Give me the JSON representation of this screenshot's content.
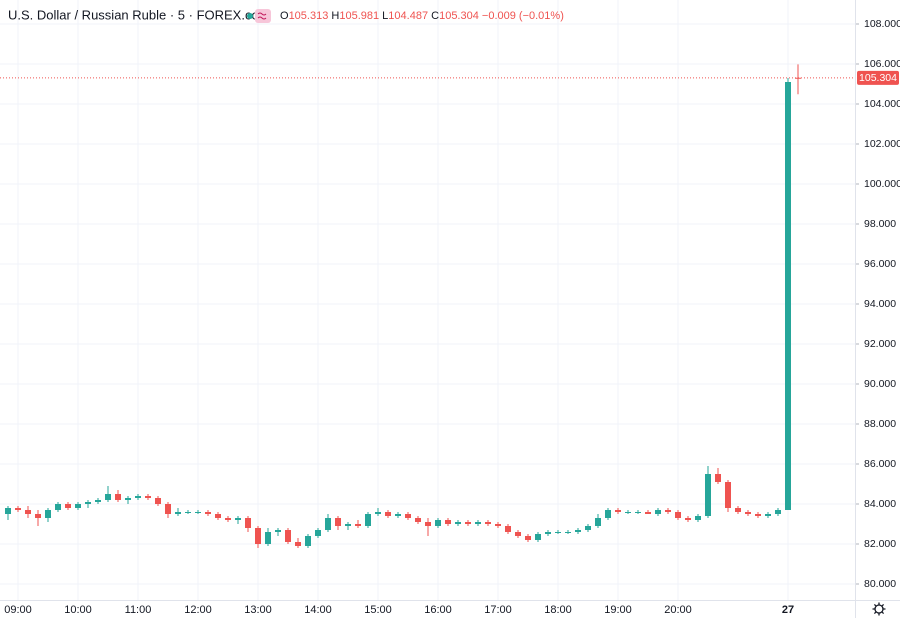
{
  "header": {
    "symbol": "U.S. Dollar / Russian Ruble · 5 · FOREX.com",
    "ohlc_labels": [
      "O",
      "H",
      "L",
      "C"
    ],
    "change": "−0.009 (−0.01%)"
  },
  "chart_data": {
    "type": "candlestick",
    "categories": [
      null,
      "09:00",
      null,
      null,
      null,
      null,
      null,
      "10:00",
      null,
      null,
      null,
      null,
      null,
      "11:00",
      null,
      null,
      null,
      null,
      null,
      "12:00",
      null,
      null,
      null,
      null,
      null,
      "13:00",
      null,
      null,
      null,
      null,
      null,
      "14:00",
      null,
      null,
      null,
      null,
      null,
      "15:00",
      null,
      null,
      null,
      null,
      null,
      "16:00",
      null,
      null,
      null,
      null,
      null,
      "17:00",
      null,
      null,
      null,
      null,
      null,
      "18:00",
      null,
      null,
      null,
      null,
      null,
      "19:00",
      null,
      null,
      null,
      null,
      null,
      "20:00",
      null,
      null,
      null,
      null,
      null,
      null,
      null,
      null,
      null,
      null,
      "27",
      null
    ],
    "open": [
      83.5,
      83.8,
      83.7,
      83.5,
      83.3,
      83.7,
      84.0,
      83.8,
      84.0,
      84.1,
      84.2,
      84.5,
      84.2,
      84.3,
      84.4,
      84.3,
      84.0,
      83.5,
      83.6,
      83.6,
      83.6,
      83.5,
      83.3,
      83.2,
      83.3,
      82.8,
      82.0,
      82.6,
      82.7,
      82.1,
      81.9,
      82.4,
      82.7,
      83.3,
      82.9,
      83.0,
      82.9,
      83.5,
      83.6,
      83.4,
      83.5,
      83.3,
      83.1,
      82.9,
      83.2,
      83.0,
      83.1,
      83.0,
      83.1,
      83.0,
      82.9,
      82.6,
      82.4,
      82.2,
      82.5,
      82.6,
      82.6,
      82.6,
      82.7,
      82.9,
      83.3,
      83.7,
      83.6,
      83.6,
      83.6,
      83.5,
      83.7,
      83.6,
      83.3,
      83.2,
      83.4,
      85.5,
      85.1,
      83.8,
      83.6,
      83.5,
      83.4,
      83.5,
      83.7,
      105.313
    ],
    "high": [
      83.9,
      83.9,
      83.9,
      83.7,
      83.8,
      84.1,
      84.1,
      84.1,
      84.2,
      84.3,
      84.9,
      84.7,
      84.4,
      84.5,
      84.5,
      84.4,
      84.1,
      83.8,
      83.7,
      83.7,
      83.7,
      83.6,
      83.4,
      83.4,
      83.4,
      82.9,
      82.8,
      82.8,
      82.8,
      82.3,
      82.5,
      82.8,
      83.5,
      83.4,
      83.1,
      83.2,
      83.6,
      83.8,
      83.7,
      83.6,
      83.6,
      83.4,
      83.3,
      83.3,
      83.3,
      83.2,
      83.2,
      83.2,
      83.2,
      83.1,
      83.0,
      82.7,
      82.5,
      82.6,
      82.7,
      82.7,
      82.7,
      82.8,
      83.0,
      83.5,
      83.8,
      83.8,
      83.7,
      83.7,
      83.7,
      83.8,
      83.8,
      83.7,
      83.4,
      83.5,
      85.9,
      85.8,
      85.2,
      83.9,
      83.7,
      83.6,
      83.6,
      83.8,
      105.3,
      105.981
    ],
    "low": [
      83.2,
      83.6,
      83.3,
      82.9,
      83.1,
      83.6,
      83.7,
      83.7,
      83.8,
      84.0,
      84.1,
      84.1,
      84.0,
      84.2,
      84.2,
      83.9,
      83.3,
      83.4,
      83.5,
      83.5,
      83.4,
      83.2,
      83.1,
      83.0,
      82.6,
      81.8,
      81.9,
      82.4,
      82.0,
      81.8,
      81.8,
      82.3,
      82.6,
      82.7,
      82.7,
      82.8,
      82.8,
      83.4,
      83.3,
      83.3,
      83.2,
      83.0,
      82.4,
      82.8,
      82.9,
      82.9,
      82.9,
      82.9,
      82.9,
      82.8,
      82.5,
      82.3,
      82.1,
      82.1,
      82.4,
      82.5,
      82.5,
      82.5,
      82.6,
      82.8,
      83.2,
      83.5,
      83.5,
      83.5,
      83.5,
      83.4,
      83.5,
      83.2,
      83.1,
      83.1,
      83.3,
      85.0,
      83.6,
      83.5,
      83.4,
      83.3,
      83.3,
      83.4,
      83.7,
      104.487
    ],
    "close": [
      83.8,
      83.7,
      83.5,
      83.3,
      83.7,
      84.0,
      83.8,
      84.0,
      84.1,
      84.2,
      84.5,
      84.2,
      84.3,
      84.4,
      84.3,
      84.0,
      83.5,
      83.6,
      83.6,
      83.6,
      83.5,
      83.3,
      83.2,
      83.3,
      82.8,
      82.0,
      82.6,
      82.7,
      82.1,
      81.9,
      82.4,
      82.7,
      83.3,
      82.9,
      83.0,
      82.9,
      83.5,
      83.6,
      83.4,
      83.5,
      83.3,
      83.1,
      82.9,
      83.2,
      83.0,
      83.1,
      83.0,
      83.1,
      83.0,
      82.9,
      82.6,
      82.4,
      82.2,
      82.5,
      82.6,
      82.6,
      82.6,
      82.7,
      82.9,
      83.3,
      83.7,
      83.6,
      83.6,
      83.6,
      83.5,
      83.7,
      83.6,
      83.3,
      83.2,
      83.4,
      85.5,
      85.1,
      83.8,
      83.6,
      83.5,
      83.4,
      83.5,
      83.7,
      105.1,
      105.304
    ],
    "up_color": "#26a69a",
    "down_color": "#ef5350",
    "ylim": [
      79.2,
      109.2
    ],
    "yticks": [
      {
        "value": 80,
        "label": "80.000"
      },
      {
        "value": 82,
        "label": "82.000"
      },
      {
        "value": 84,
        "label": "84.000"
      },
      {
        "value": 86,
        "label": "86.000"
      },
      {
        "value": 88,
        "label": "88.000"
      },
      {
        "value": 90,
        "label": "90.000"
      },
      {
        "value": 92,
        "label": "92.000"
      },
      {
        "value": 94,
        "label": "94.000"
      },
      {
        "value": 96,
        "label": "96.000"
      },
      {
        "value": 98,
        "label": "98.000"
      },
      {
        "value": 100,
        "label": "100.000"
      },
      {
        "value": 102,
        "label": "102.000"
      },
      {
        "value": 104,
        "label": "104.000"
      },
      {
        "value": 106,
        "label": "106.000"
      },
      {
        "value": 108,
        "label": "108.000"
      }
    ],
    "grid": true
  }
}
